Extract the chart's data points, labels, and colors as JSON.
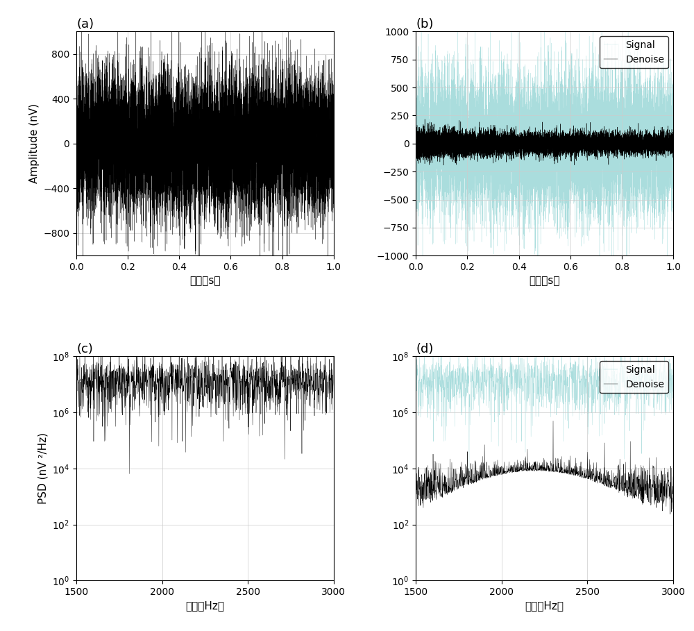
{
  "fig_width": 10.0,
  "fig_height": 9.09,
  "dpi": 100,
  "panel_a": {
    "title": "(a)",
    "xlabel": "时间（s）",
    "ylabel": "Amplitude (nV)",
    "xlim": [
      0,
      1
    ],
    "ylim": [
      -1000,
      1000
    ],
    "xticks": [
      0,
      0.2,
      0.4,
      0.6,
      0.8,
      1
    ],
    "yticks": [
      -800,
      -400,
      0,
      400,
      800
    ],
    "color": "#000000"
  },
  "panel_b": {
    "title": "(b)",
    "xlabel": "时间（s）",
    "xlim": [
      0,
      1
    ],
    "ylim": [
      -1000,
      1000
    ],
    "xticks": [
      0,
      0.2,
      0.4,
      0.6,
      0.8,
      1
    ],
    "signal_color": "#aadddd",
    "denoise_color": "#000000",
    "legend_labels": [
      "Signal",
      "Denoise"
    ]
  },
  "panel_c": {
    "title": "(c)",
    "xlabel": "频率（Hz）",
    "ylabel": "PSD (nV ²/Hz)",
    "xlim": [
      1500,
      3000
    ],
    "ylim_log": [
      1.0,
      100000000.0
    ],
    "xticks": [
      1500,
      2000,
      2500,
      3000
    ],
    "yticks_log": [
      1.0,
      100.0,
      10000.0,
      1000000.0,
      100000000.0
    ],
    "color": "#000000"
  },
  "panel_d": {
    "title": "(d)",
    "xlabel": "频率（Hz）",
    "xlim": [
      1500,
      3000
    ],
    "ylim_log": [
      1.0,
      100000000.0
    ],
    "xticks": [
      1500,
      2000,
      2500,
      3000
    ],
    "yticks_log": [
      1.0,
      100.0,
      10000.0,
      1000000.0,
      100000000.0
    ],
    "signal_color": "#aadddd",
    "denoise_color": "#000000",
    "legend_labels": [
      "Signal",
      "Denoise"
    ]
  },
  "background_color": "#ffffff",
  "grid_color": "#cccccc",
  "font_size_label": 11,
  "font_size_title": 13,
  "font_size_tick": 10,
  "font_size_legend": 10
}
